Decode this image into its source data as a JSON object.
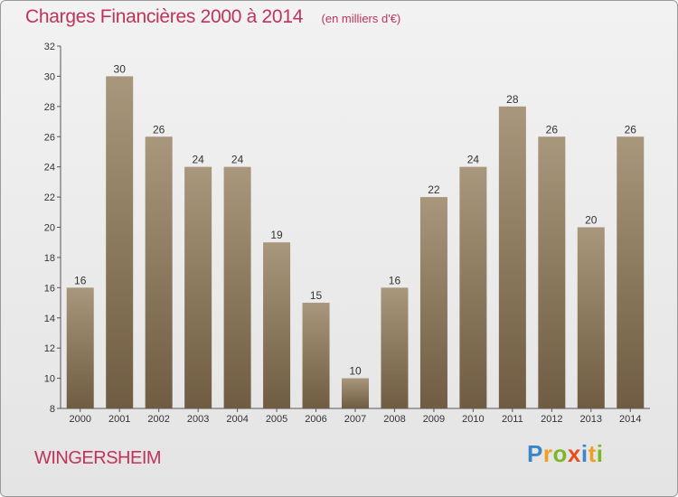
{
  "header": {
    "title": "Charges Financières 2000 à 2014",
    "subtitle": "(en milliers d'€)"
  },
  "footer": {
    "place": "WINGERSHEIM",
    "logo": {
      "letters": [
        "P",
        "r",
        "o",
        "x",
        "i",
        "t",
        "i"
      ],
      "colors": [
        "#3b86c8",
        "#f0a020",
        "#7ab827",
        "#e84d1c",
        "#3b86c8",
        "#f0a020",
        "#7ab827"
      ]
    }
  },
  "colors": {
    "accent": "#c0335a",
    "bar_top": "#a8977c",
    "bar_bottom": "#6f5c42"
  },
  "chart_data": {
    "type": "bar",
    "title": "Charges Financières 2000 à 2014",
    "subtitle": "(en milliers d'€)",
    "categories": [
      "2000",
      "2001",
      "2002",
      "2003",
      "2004",
      "2005",
      "2006",
      "2007",
      "2008",
      "2009",
      "2010",
      "2011",
      "2012",
      "2013",
      "2014"
    ],
    "values": [
      16,
      30,
      26,
      24,
      24,
      19,
      15,
      10,
      16,
      22,
      24,
      28,
      26,
      20,
      26
    ],
    "ylim": [
      8,
      32
    ],
    "yticks": [
      8,
      10,
      12,
      14,
      16,
      18,
      20,
      22,
      24,
      26,
      28,
      30,
      32
    ],
    "grid": false,
    "data_labels": true
  }
}
